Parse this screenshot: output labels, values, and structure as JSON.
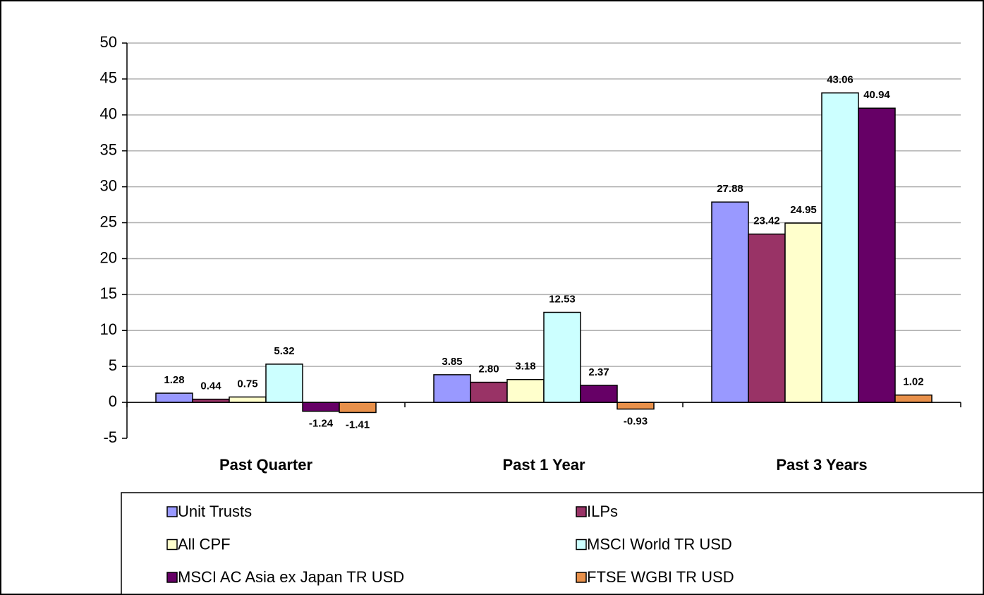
{
  "chart_data": {
    "type": "bar",
    "categories": [
      "Past Quarter",
      "Past 1 Year",
      "Past 3 Years"
    ],
    "series": [
      {
        "name": "Unit Trusts",
        "color": "#9999ff",
        "values": [
          1.28,
          3.85,
          27.88
        ],
        "value_labels": [
          "1.28",
          "3.85",
          "27.88"
        ]
      },
      {
        "name": "ILPs",
        "color": "#993366",
        "values": [
          0.44,
          2.8,
          23.42
        ],
        "value_labels": [
          "0.44",
          "2.80",
          "23.42"
        ]
      },
      {
        "name": "All CPF",
        "color": "#ffffcc",
        "values": [
          0.75,
          3.18,
          24.95
        ],
        "value_labels": [
          "0.75",
          "3.18",
          "24.95"
        ]
      },
      {
        "name": "MSCI World TR USD",
        "color": "#ccffff",
        "values": [
          5.32,
          12.53,
          43.06
        ],
        "value_labels": [
          "5.32",
          "12.53",
          "43.06"
        ]
      },
      {
        "name": "MSCI AC Asia ex Japan TR USD",
        "color": "#660066",
        "values": [
          -1.24,
          2.37,
          40.94
        ],
        "value_labels": [
          "-1.24",
          "2.37",
          "40.94"
        ]
      },
      {
        "name": "FTSE WGBI TR USD",
        "color": "#e8904a",
        "values": [
          -1.41,
          -0.93,
          1.02
        ],
        "value_labels": [
          "-1.41",
          "-0.93",
          "1.02"
        ]
      }
    ],
    "ylim": [
      -5,
      50
    ],
    "yticks": [
      -5,
      0,
      5,
      10,
      15,
      20,
      25,
      30,
      35,
      40,
      45,
      50
    ],
    "grid": true
  }
}
